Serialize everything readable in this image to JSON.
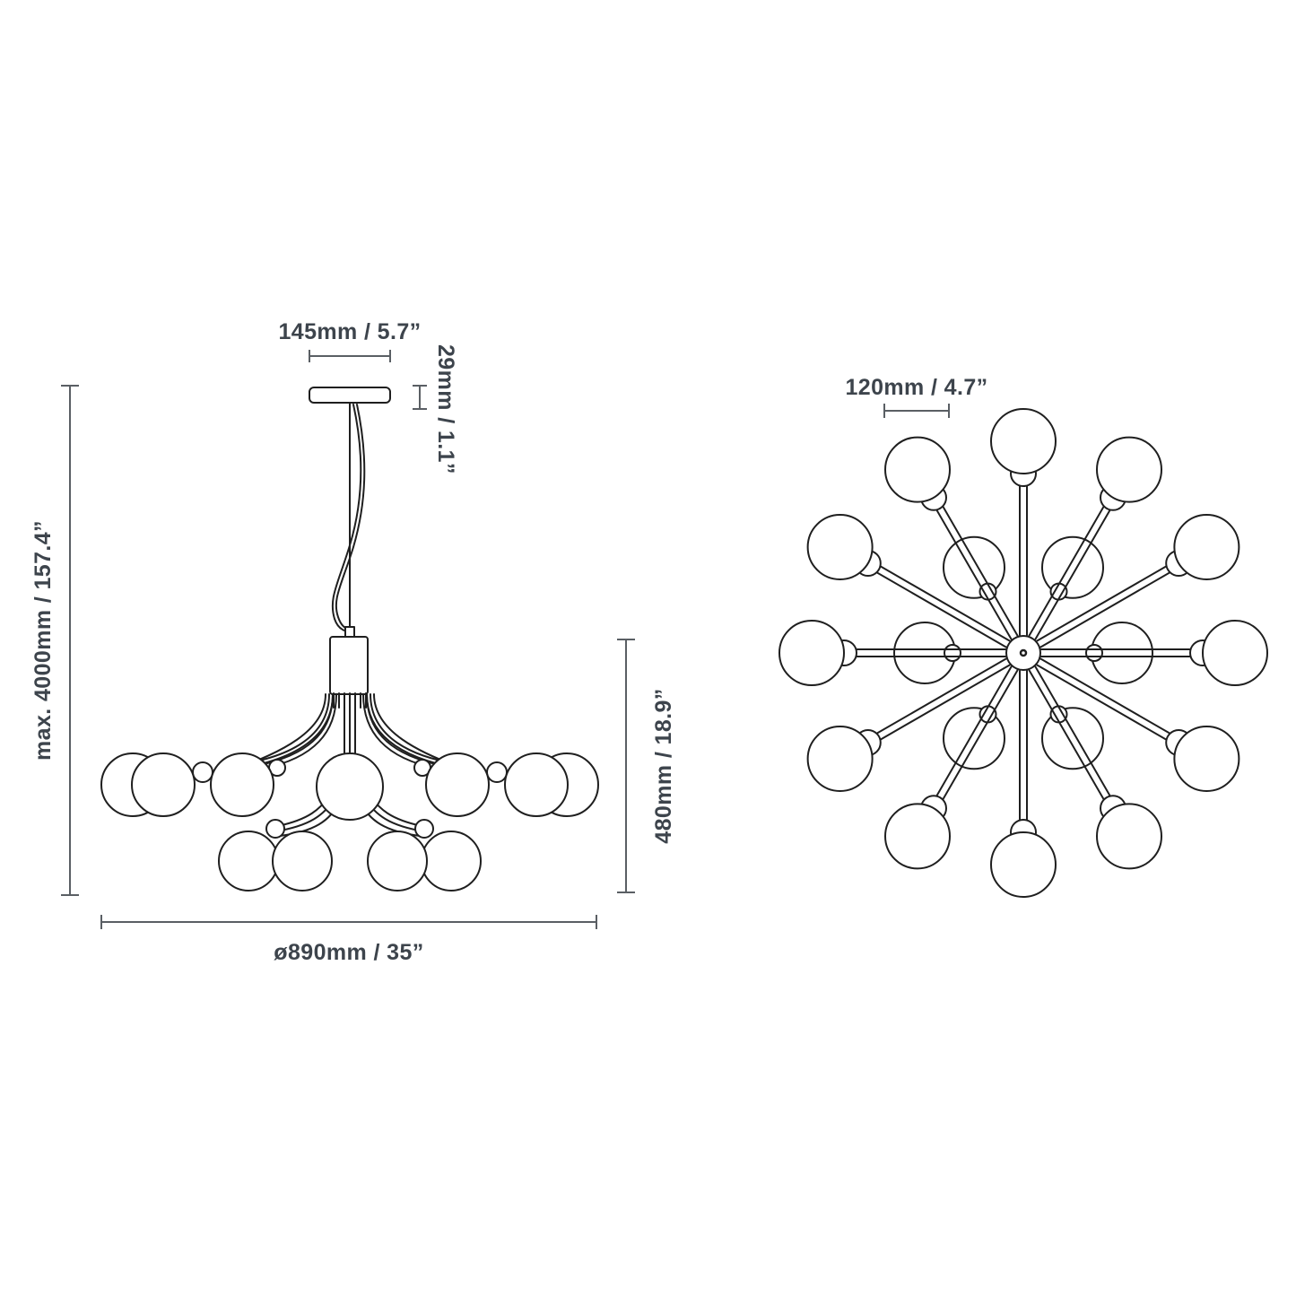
{
  "figure": {
    "background_color": "#ffffff",
    "outline_color": "#1f1f1f",
    "dimension_line_color": "#5a5f64",
    "text_color": "#3d444c"
  },
  "side_view": {
    "canopy_width_label": "145mm / 5.7”",
    "canopy_height_label": "29mm / 1.1”",
    "suspension_label": "max. 4000mm / 157.4”",
    "fixture_height_label": "480mm / 18.9”",
    "diameter_label": "ø890mm / 35”"
  },
  "top_view": {
    "globe_diameter_label": "120mm / 4.7”"
  }
}
